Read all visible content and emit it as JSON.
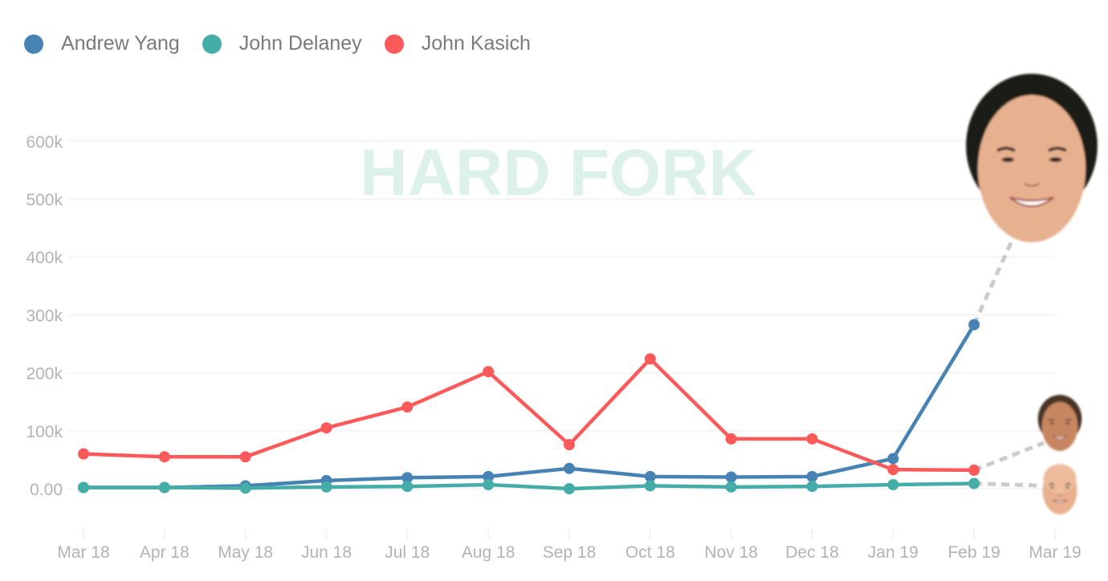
{
  "chart_data": {
    "type": "line",
    "title": "",
    "xlabel": "",
    "ylabel": "",
    "watermark": "HARD FORK",
    "x": [
      "Mar 18",
      "Apr 18",
      "May 18",
      "Jun 18",
      "Jul 18",
      "Aug 18",
      "Sep 18",
      "Oct 18",
      "Nov 18",
      "Dec 18",
      "Jan 19",
      "Feb 19",
      "Mar 19"
    ],
    "yticks": [
      0,
      100000,
      200000,
      300000,
      400000,
      500000,
      600000
    ],
    "ytick_labels": [
      "0.00",
      "100k",
      "200k",
      "300k",
      "400k",
      "500k",
      "600k"
    ],
    "ylim": [
      -80000,
      600000
    ],
    "grid": true,
    "legend_position": "top-left",
    "series": [
      {
        "name": "Andrew Yang",
        "color": "#4682b4",
        "values": [
          2000,
          2000,
          5000,
          14000,
          19000,
          21000,
          35000,
          21000,
          20000,
          21000,
          52000,
          283000,
          null
        ],
        "face": "andrew-yang-face"
      },
      {
        "name": "John Delaney",
        "color": "#45ada8",
        "values": [
          2000,
          2000,
          1000,
          3000,
          4000,
          7000,
          0,
          5000,
          3000,
          4000,
          7000,
          9000,
          null
        ],
        "face": "john-delaney-face"
      },
      {
        "name": "John Kasich",
        "color": "#fc5a5a",
        "values": [
          60000,
          55000,
          55000,
          105000,
          141000,
          202000,
          76000,
          224000,
          86000,
          86000,
          33000,
          32000,
          null
        ],
        "face": "john-kasich-face"
      }
    ]
  }
}
